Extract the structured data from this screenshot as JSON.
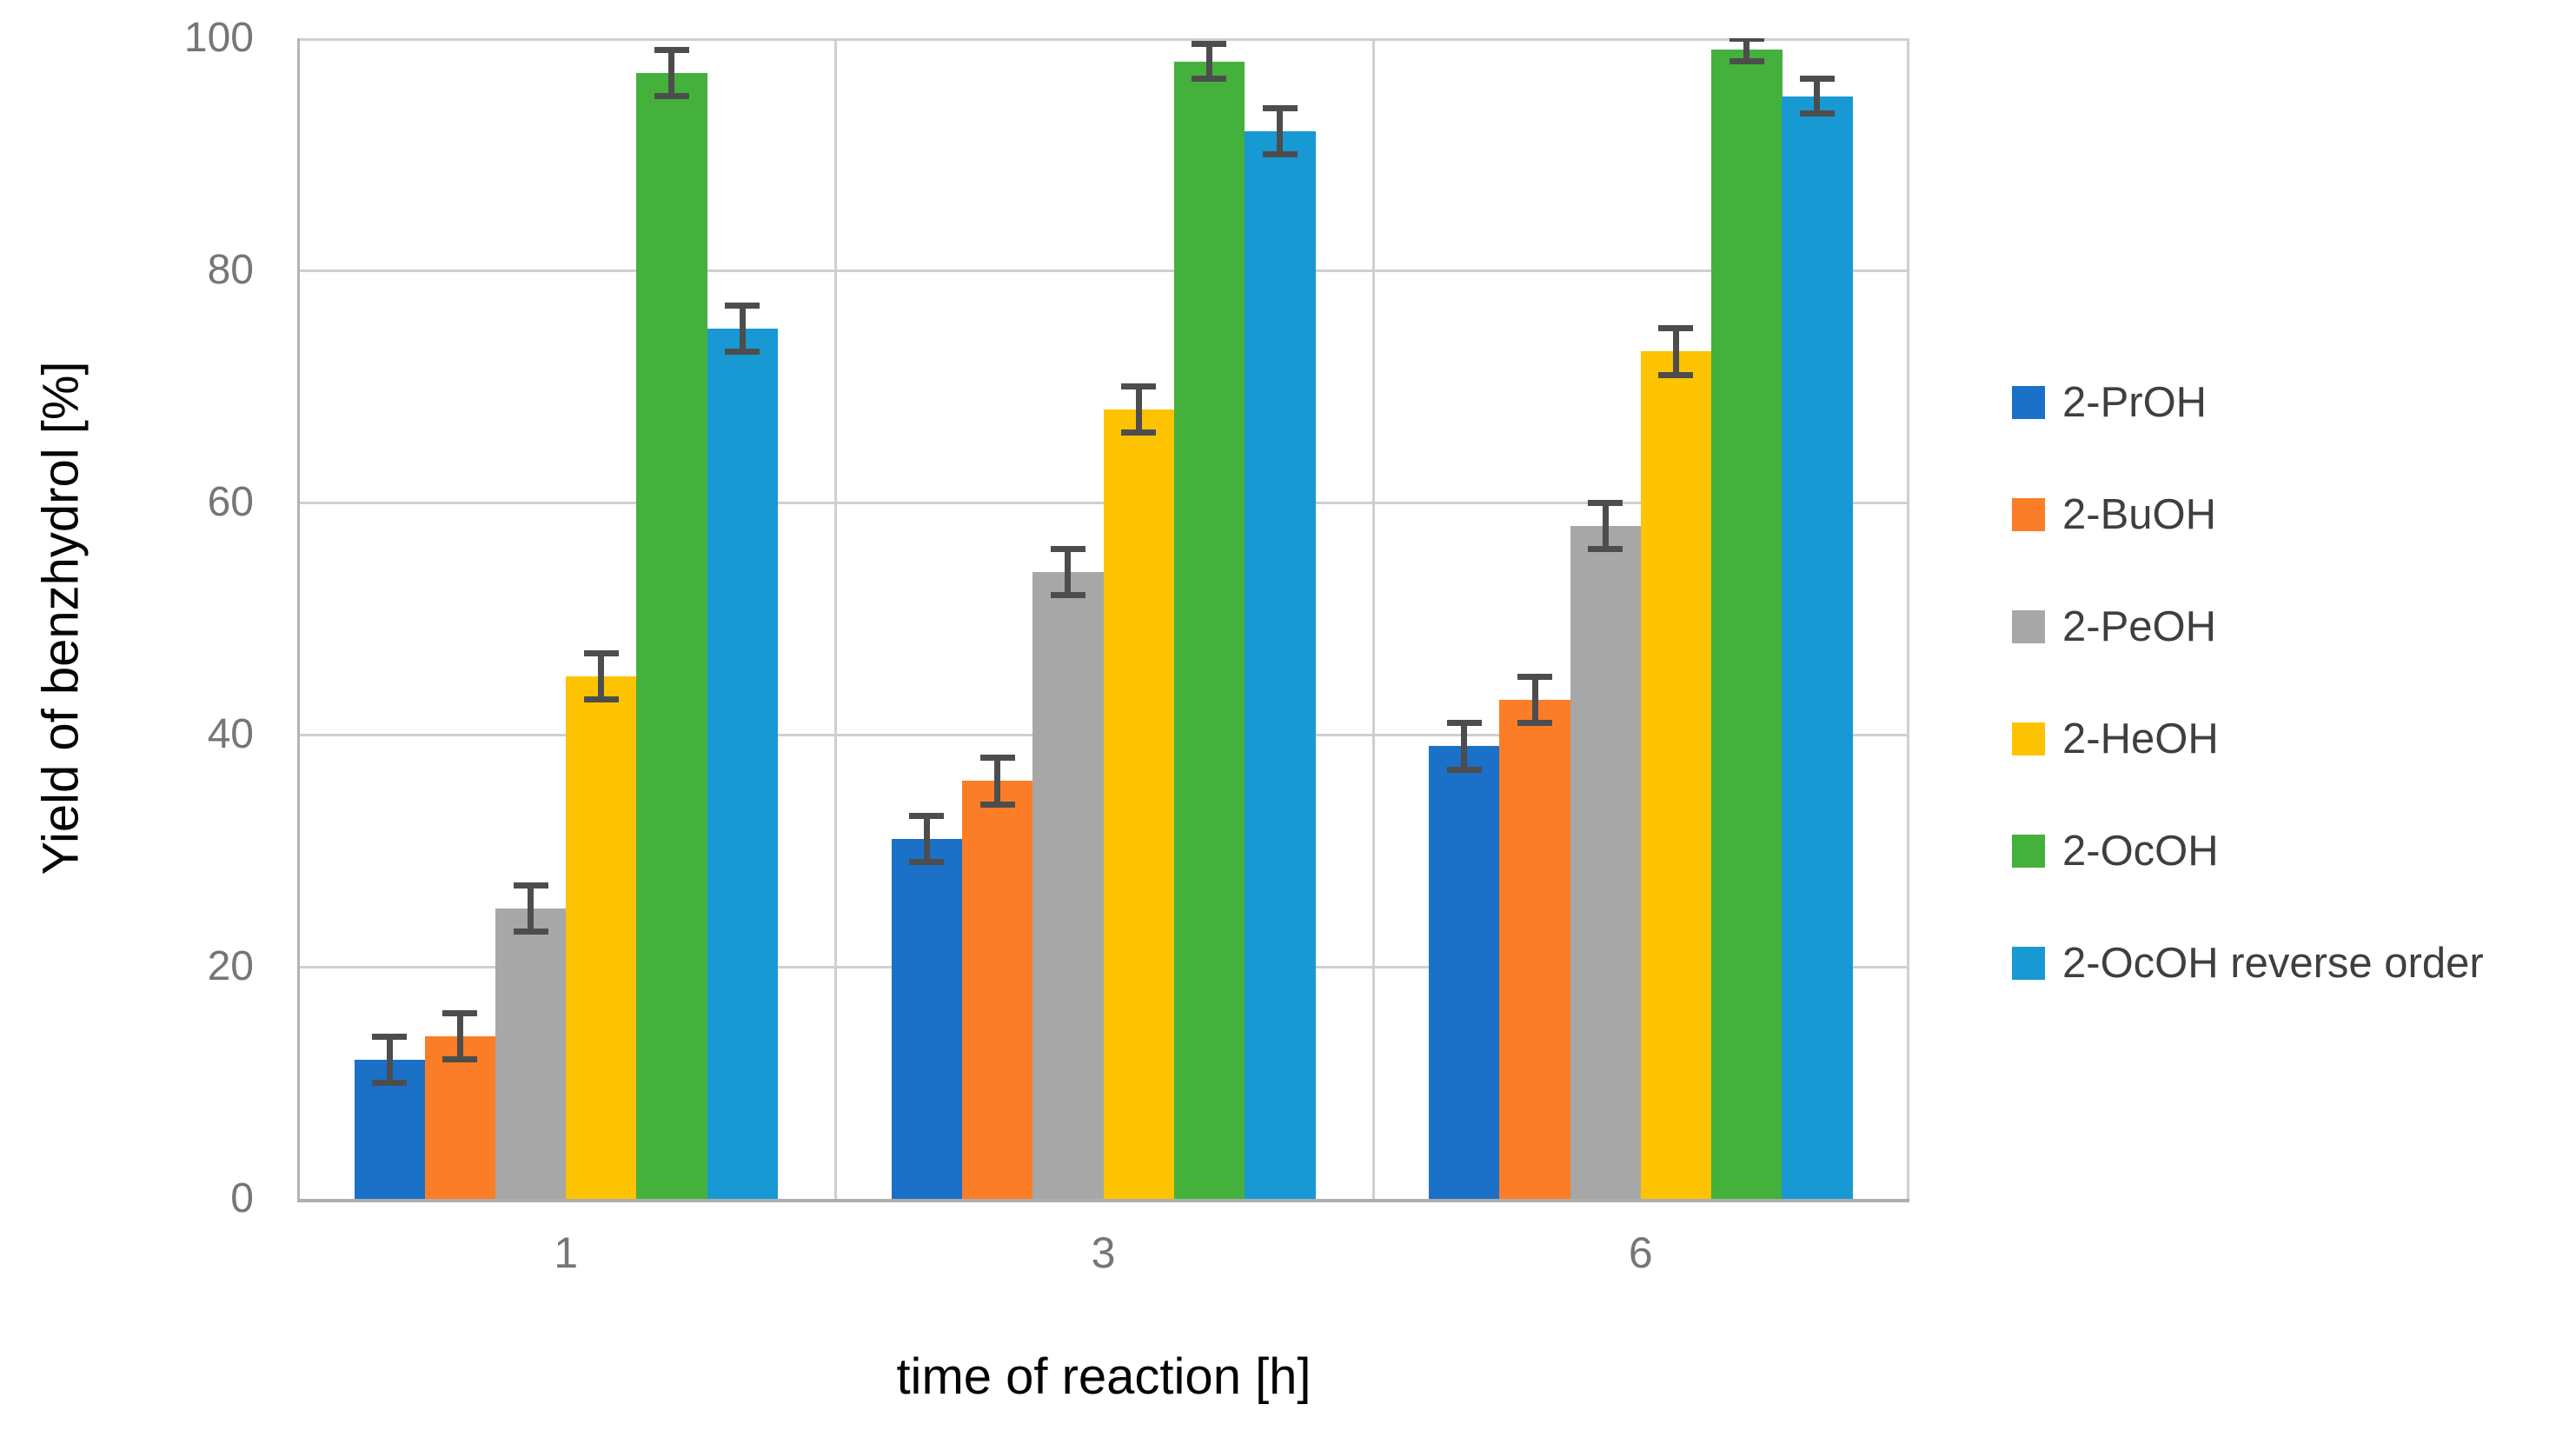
{
  "chart_data": {
    "type": "bar",
    "xlabel": "time of reaction [h]",
    "ylabel": "Yield of benzhydrol [%]",
    "categories": [
      "1",
      "3",
      "6"
    ],
    "y_ticks": [
      0,
      20,
      40,
      60,
      80,
      100
    ],
    "ylim": [
      0,
      100
    ],
    "grid": true,
    "legend_position": "right",
    "error_bar_color": "#4d4d4d",
    "series": [
      {
        "name": "2-PrOH",
        "color": "#1b70c8",
        "values": [
          12,
          31,
          39
        ],
        "errors": [
          2,
          2,
          2
        ]
      },
      {
        "name": "2-BuOH",
        "color": "#fb7d28",
        "values": [
          14,
          36,
          43
        ],
        "errors": [
          2,
          2,
          2
        ]
      },
      {
        "name": "2-PeOH",
        "color": "#a7a7a7",
        "values": [
          25,
          54,
          58
        ],
        "errors": [
          2,
          2,
          2
        ]
      },
      {
        "name": "2-HeOH",
        "color": "#fec300",
        "values": [
          45,
          68,
          73
        ],
        "errors": [
          2,
          2,
          2
        ]
      },
      {
        "name": "2-OcOH",
        "color": "#43b13c",
        "values": [
          97,
          98,
          99
        ],
        "errors": [
          2,
          1.5,
          1
        ]
      },
      {
        "name": "2-OcOH reverse order",
        "color": "#1999d3",
        "values": [
          75,
          92,
          95
        ],
        "errors": [
          2,
          2,
          1.5
        ]
      }
    ]
  }
}
